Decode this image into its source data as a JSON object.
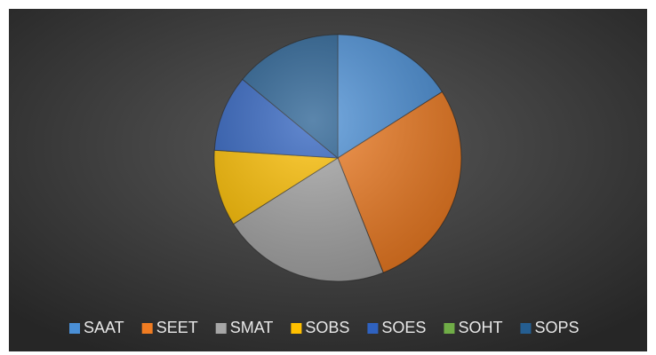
{
  "chart_data": {
    "type": "pie",
    "categories": [
      "SAAT",
      "SEET",
      "SMAT",
      "SOBS",
      "SOES",
      "SOHT",
      "SOPS"
    ],
    "values": [
      16,
      28,
      22,
      10,
      10,
      0,
      14
    ],
    "colors": [
      "#4a8fd6",
      "#f07c22",
      "#a6a6a6",
      "#ffc000",
      "#2f62c0",
      "#70ad47",
      "#255e91"
    ],
    "legend": "bottom"
  }
}
